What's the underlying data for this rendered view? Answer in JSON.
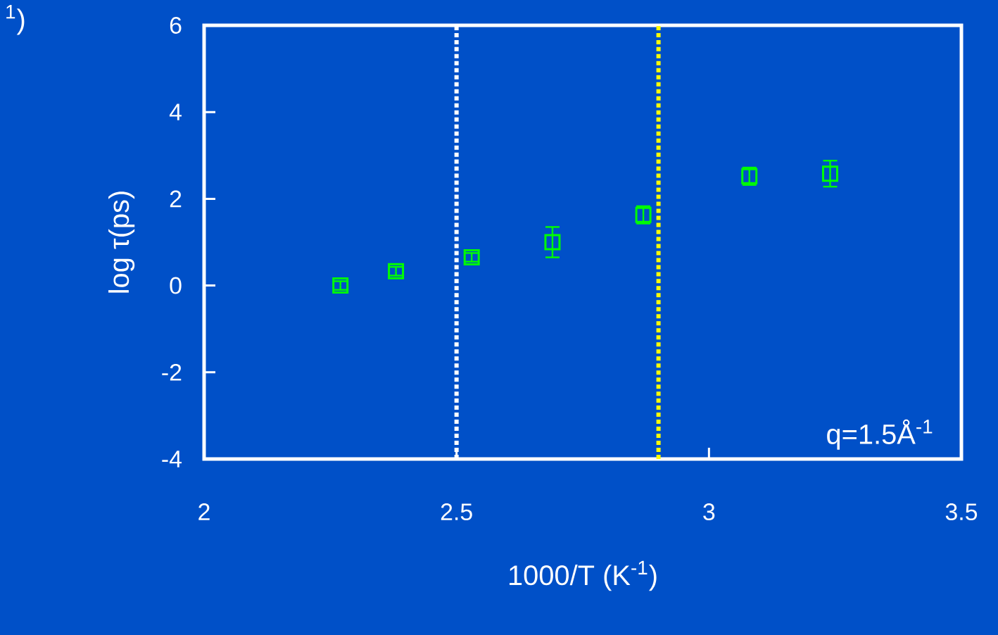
{
  "chart_data": {
    "type": "scatter",
    "xlabel": "1000/T  (K$^{-1}$)",
    "ylabel": "log τ(ps)",
    "x": [
      2.27,
      2.38,
      2.53,
      2.69,
      2.87,
      3.08,
      3.24
    ],
    "values": [
      0.0,
      0.33,
      0.65,
      1.0,
      1.63,
      2.52,
      2.58
    ],
    "errors": [
      0.1,
      0.1,
      0.1,
      0.35,
      0.2,
      0.2,
      0.3
    ],
    "color": "#00ff00",
    "marker": "square",
    "xlim": [
      2,
      3.5
    ],
    "xticks": [
      2,
      2.5,
      3,
      3.5
    ],
    "ylim": [
      -4,
      6
    ],
    "yticks": [
      -4,
      -2,
      0,
      2,
      4,
      6
    ],
    "ref_lines": [
      {
        "axis": "x",
        "value": 2.5,
        "color": "#ffffff",
        "line_style": "dotted"
      },
      {
        "axis": "x",
        "value": 2.9,
        "color": "#ffff00",
        "line_style": "dotted"
      }
    ],
    "annotations": [
      "q=1.5Å$^{-1}$",
      "$^{1}$)"
    ],
    "grid": false
  }
}
